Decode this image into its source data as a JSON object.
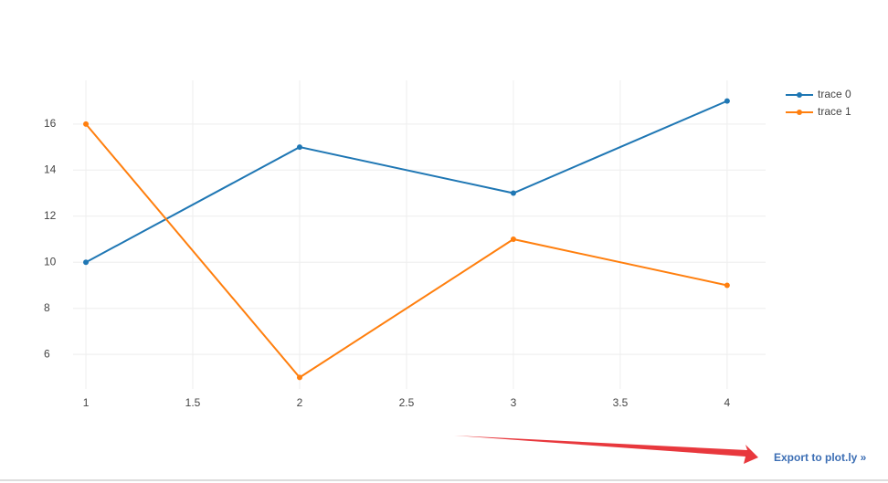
{
  "chart_data": {
    "type": "line",
    "x": [
      1,
      2,
      3,
      4
    ],
    "series": [
      {
        "name": "trace 0",
        "color": "#1f77b4",
        "values": [
          10,
          15,
          13,
          17
        ]
      },
      {
        "name": "trace 1",
        "color": "#ff7f0e",
        "values": [
          16,
          5,
          11,
          9
        ]
      }
    ],
    "xlim": [
      0.94,
      4.18
    ],
    "ylim": [
      4.5,
      17.5
    ],
    "xticks": [
      1,
      1.5,
      2,
      2.5,
      3,
      3.5,
      4
    ],
    "yticks": [
      6,
      8,
      10,
      12,
      14,
      16
    ],
    "grid": true,
    "legend": "top-right",
    "link": "Export to plot.ly »"
  }
}
